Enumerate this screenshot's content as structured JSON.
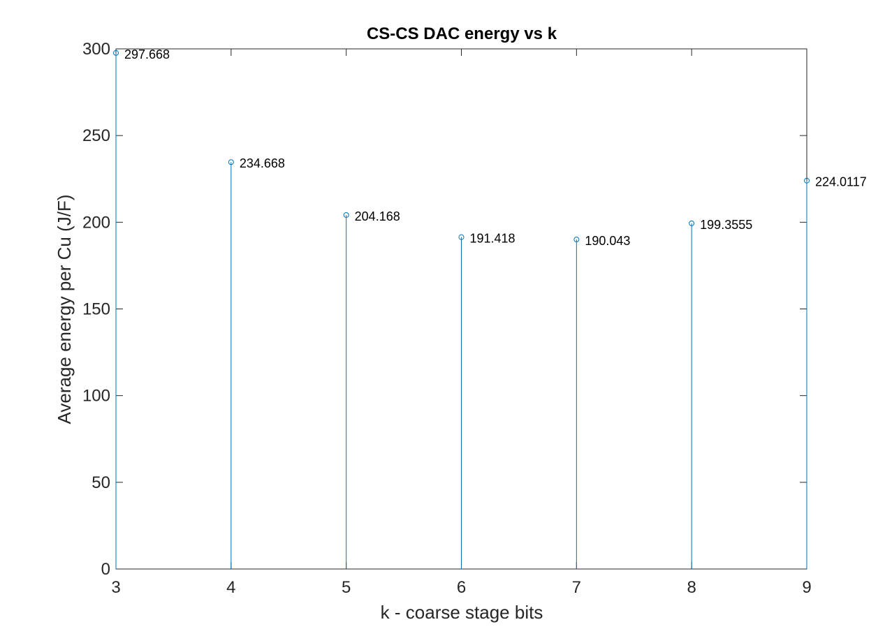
{
  "chart_data": {
    "type": "stem",
    "title": "CS-CS DAC energy vs k",
    "xlabel": "k - coarse stage bits",
    "ylabel": "Average energy per Cu (J/F)",
    "x": [
      3,
      4,
      5,
      6,
      7,
      8,
      9
    ],
    "values": [
      297.668,
      234.668,
      204.168,
      191.418,
      190.043,
      199.3555,
      224.0117
    ],
    "data_labels": [
      "297.668",
      "234.668",
      "204.168",
      "191.418",
      "190.043",
      "199.3555",
      "224.0117"
    ],
    "xlim": [
      3,
      9
    ],
    "ylim": [
      0,
      300
    ],
    "xticks": [
      3,
      4,
      5,
      6,
      7,
      8,
      9
    ],
    "yticks": [
      0,
      50,
      100,
      150,
      200,
      250,
      300
    ],
    "grid": false,
    "legend": "none",
    "colors": {
      "series": "#0072BD",
      "axes": "#262626",
      "text": "#000000"
    }
  }
}
